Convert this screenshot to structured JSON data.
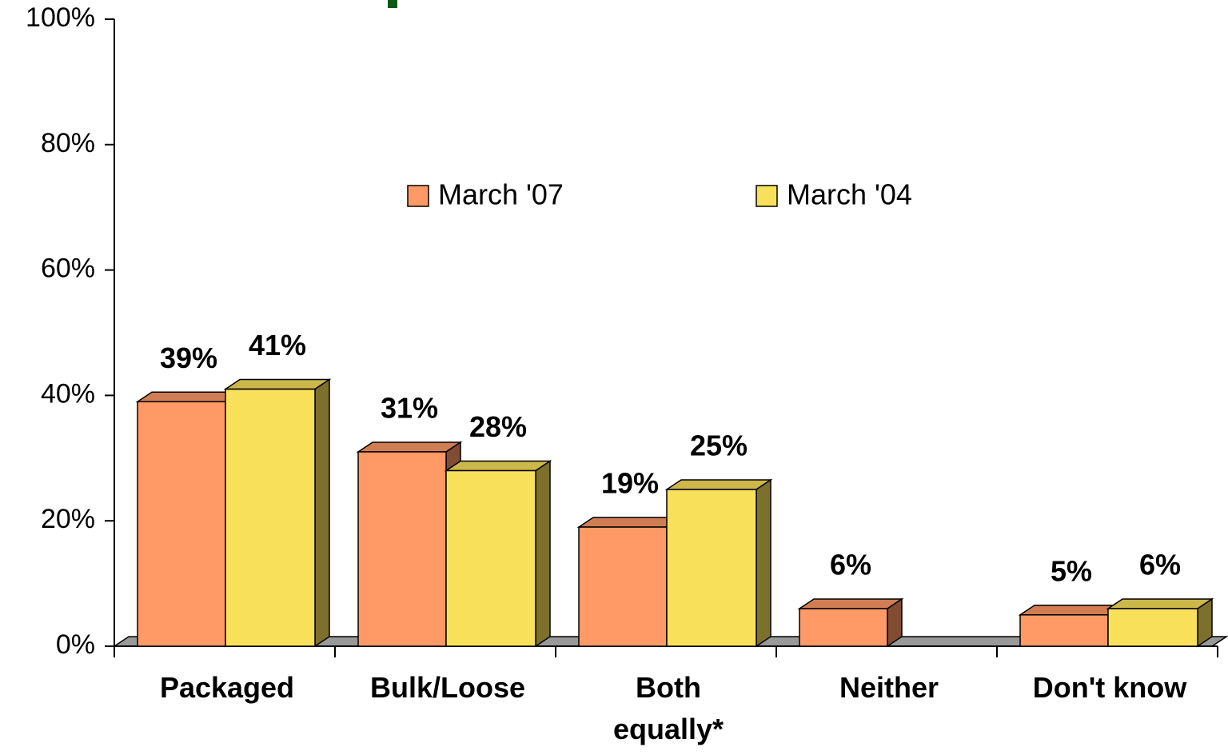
{
  "chart_data": {
    "type": "bar3d",
    "categories": [
      "Packaged",
      "Bulk/Loose",
      "Both equally*",
      "Neither",
      "Don't know"
    ],
    "series": [
      {
        "name": "March '07",
        "color": "#FF9966",
        "values": [
          39,
          31,
          19,
          6,
          5
        ],
        "value_labels": [
          "39%",
          "31%",
          "19%",
          "6%",
          "5%"
        ]
      },
      {
        "name": "March '04",
        "color": "#F9E05A",
        "values": [
          41,
          28,
          25,
          null,
          6
        ],
        "value_labels": [
          "41%",
          "28%",
          "25%",
          null,
          "6%"
        ]
      }
    ],
    "ylim": [
      0,
      100
    ],
    "yticks": [
      {
        "value": 0,
        "label": "0%"
      },
      {
        "value": 20,
        "label": "20%"
      },
      {
        "value": 40,
        "label": "40%"
      },
      {
        "value": 60,
        "label": "60%"
      },
      {
        "value": 80,
        "label": "80%"
      },
      {
        "value": 100,
        "label": "100%"
      }
    ],
    "legend": "top"
  }
}
